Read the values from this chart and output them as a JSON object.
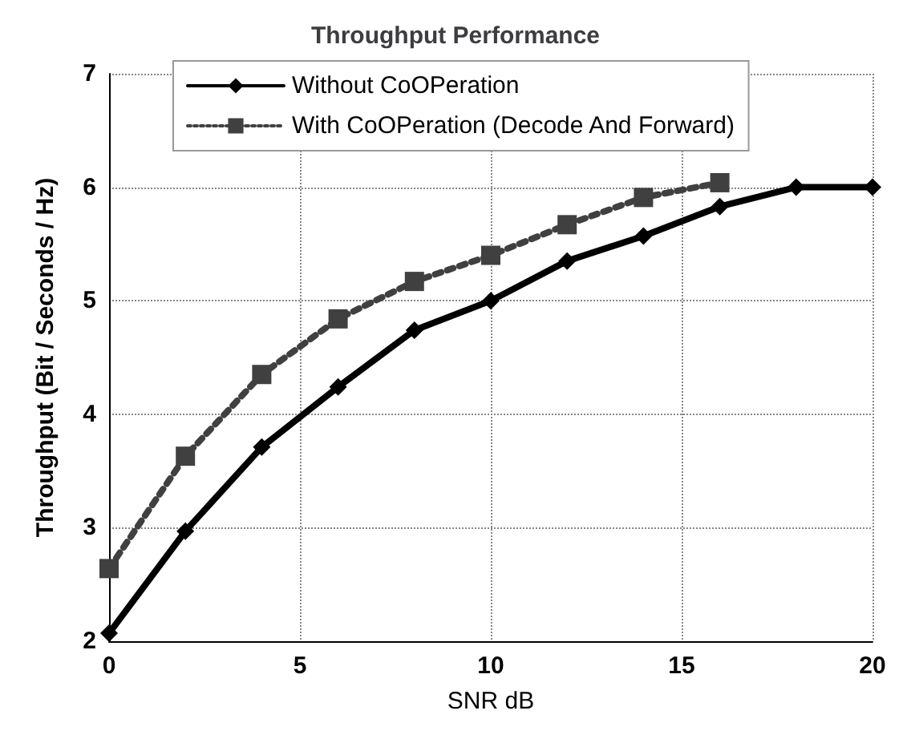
{
  "chart_data": {
    "type": "line",
    "title": "Throughput Performance",
    "xlabel": "SNR dB",
    "ylabel": "Throughput (Bit / Seconds / Hz)",
    "x": [
      0,
      2,
      4,
      6,
      8,
      10,
      12,
      14,
      16,
      18,
      20
    ],
    "series": [
      {
        "name": "Without CoOPeration",
        "color": "#000000",
        "marker": "diamond",
        "line_style": "solid",
        "values": [
          2.07,
          2.97,
          3.71,
          4.24,
          4.74,
          5.0,
          5.35,
          5.57,
          5.83,
          6.0,
          6.0
        ]
      },
      {
        "name": "With CoOPeration (Decode And Forward)",
        "color": "#404040",
        "marker": "square",
        "line_style": "dotted",
        "values": [
          2.64,
          3.63,
          4.35,
          4.84,
          5.17,
          5.4,
          5.67,
          5.91,
          6.04,
          null,
          null
        ]
      }
    ],
    "xlim": [
      0,
      20
    ],
    "xticks": [
      0,
      5,
      10,
      15,
      20
    ],
    "ylim": [
      2,
      7
    ],
    "yticks": [
      2,
      3,
      4,
      5,
      6,
      7
    ],
    "grid": true,
    "legend": "top"
  }
}
